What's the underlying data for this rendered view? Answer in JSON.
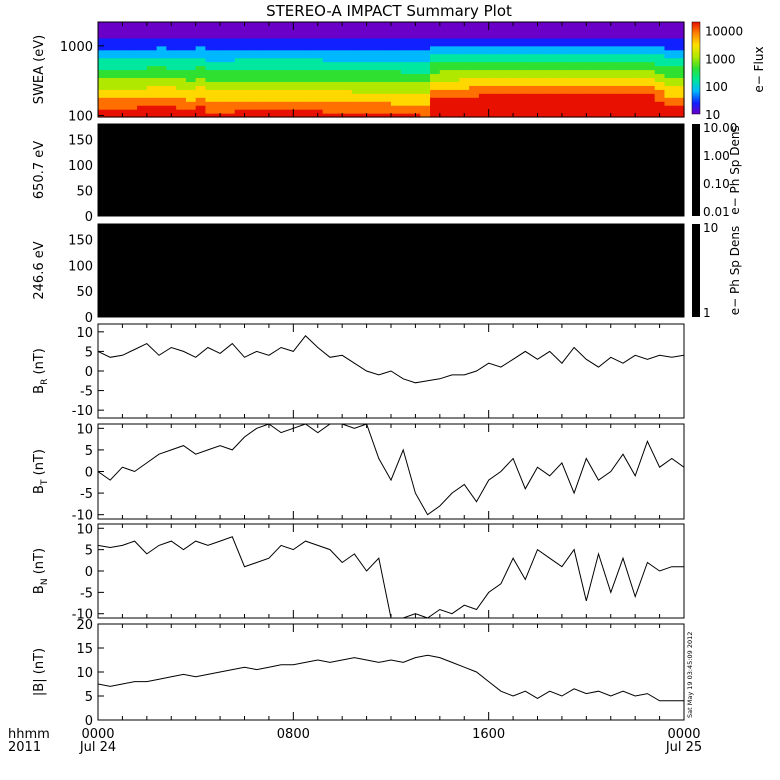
{
  "title": "STEREO-A IMPACT Summary Plot",
  "timestamp": "Sat May 19 03:45:09 2012",
  "x_axis": {
    "corner_top": "hhmm",
    "corner_bottom": "2011",
    "ticks": [
      {
        "hour": 0,
        "top": "0000",
        "bottom": "Jul 24"
      },
      {
        "hour": 8,
        "top": "0800",
        "bottom": ""
      },
      {
        "hour": 16,
        "top": "1600",
        "bottom": ""
      },
      {
        "hour": 24,
        "top": "0000",
        "bottom": "Jul 25"
      }
    ]
  },
  "chart_data": [
    {
      "type": "heatmap",
      "ylabel": "SWEA (eV)",
      "y_scale": "log",
      "ylim": [
        95,
        2200
      ],
      "y_ticks": [
        "100",
        "1000"
      ],
      "colorbar": {
        "label": "e− Flux",
        "scale": "log",
        "range": [
          10,
          20000
        ],
        "ticks": [
          "10",
          "100",
          "1000",
          "10000"
        ]
      },
      "xlim": [
        0,
        24
      ],
      "flux_profile_x": [
        0,
        1.5,
        2.5,
        3.8,
        4.1,
        4.5,
        8.2,
        13.5,
        13.8,
        15.5,
        22.8,
        23.2,
        24
      ],
      "flux_profile_level": [
        0.55,
        0.55,
        0.6,
        0.52,
        0.62,
        0.5,
        0.52,
        0.45,
        0.72,
        0.78,
        0.8,
        0.58,
        0.58
      ]
    },
    {
      "type": "heatmap",
      "ylabel": "650.7 eV",
      "ylim": [
        0,
        180
      ],
      "y_ticks": [
        "0",
        "50",
        "100",
        "150"
      ],
      "colorbar": {
        "label": "e− Ph Sp Dens",
        "scale": "log",
        "range": [
          0.01,
          10
        ],
        "ticks": [
          "10.00",
          "1.00",
          "0.10",
          "0.01"
        ]
      },
      "fill": "#000000"
    },
    {
      "type": "heatmap",
      "ylabel": "246.6 eV",
      "ylim": [
        0,
        180
      ],
      "y_ticks": [
        "0",
        "50",
        "100",
        "150"
      ],
      "colorbar": {
        "label": "e− Ph Sp Dens",
        "scale": "log",
        "range": [
          1,
          10
        ],
        "ticks": [
          "10",
          "1"
        ]
      },
      "fill": "#000000"
    },
    {
      "type": "line",
      "ylabel_main": "B",
      "ylabel_sub": "R",
      "ylabel_unit": " (nT)",
      "ylim": [
        -12,
        12
      ],
      "y_ticks": [
        "-10",
        "-5",
        "0",
        "5",
        "10"
      ],
      "x": [
        0,
        0.5,
        1,
        1.5,
        2,
        2.5,
        3,
        3.5,
        4,
        4.5,
        5,
        5.5,
        6,
        6.5,
        7,
        7.5,
        8,
        8.5,
        9,
        9.5,
        10,
        10.5,
        11,
        11.5,
        12,
        12.5,
        13,
        13.5,
        14,
        14.5,
        15,
        15.5,
        16,
        16.5,
        17,
        17.5,
        18,
        18.5,
        19,
        19.5,
        20,
        20.5,
        21,
        21.5,
        22,
        22.5,
        23,
        23.5,
        24
      ],
      "y": [
        5,
        3.5,
        4,
        5.5,
        7,
        4,
        6,
        5,
        3.5,
        6,
        4.5,
        7,
        3.5,
        5,
        4,
        6,
        5,
        9,
        6,
        3.5,
        4,
        2,
        0,
        -1,
        0,
        -2,
        -3,
        -2.5,
        -2,
        -1,
        -1,
        0,
        2,
        1,
        3,
        5,
        3,
        5,
        2,
        6,
        3,
        1,
        3.5,
        2,
        4,
        3,
        4,
        3.5,
        4
      ]
    },
    {
      "type": "line",
      "ylabel_main": "B",
      "ylabel_sub": "T",
      "ylabel_unit": " (nT)",
      "ylim": [
        -11,
        11
      ],
      "y_ticks": [
        "-10",
        "-5",
        "0",
        "5",
        "10"
      ],
      "x": [
        0,
        0.5,
        1,
        1.5,
        2,
        2.5,
        3,
        3.5,
        4,
        4.5,
        5,
        5.5,
        6,
        6.5,
        7,
        7.5,
        8,
        8.5,
        9,
        9.5,
        10,
        10.5,
        11,
        11.5,
        12,
        12.5,
        13,
        13.5,
        14,
        14.5,
        15,
        15.5,
        16,
        16.5,
        17,
        17.5,
        18,
        18.5,
        19,
        19.5,
        20,
        20.5,
        21,
        21.5,
        22,
        22.5,
        23,
        23.5,
        24
      ],
      "y": [
        0,
        -2,
        1,
        0,
        2,
        4,
        5,
        6,
        4,
        5,
        6,
        5,
        8,
        10,
        11,
        9,
        10,
        11,
        9,
        11,
        11,
        10,
        11,
        3,
        -2,
        5,
        -5,
        -10,
        -8,
        -5,
        -3,
        -7,
        -2,
        0,
        3,
        -4,
        1,
        -1,
        2,
        -5,
        3,
        -2,
        0,
        4,
        -1,
        7,
        1,
        3,
        1
      ]
    },
    {
      "type": "line",
      "ylabel_main": "B",
      "ylabel_sub": "N",
      "ylabel_unit": " (nT)",
      "ylim": [
        -11,
        11
      ],
      "y_ticks": [
        "-10",
        "-5",
        "0",
        "5",
        "10"
      ],
      "x": [
        0,
        0.5,
        1,
        1.5,
        2,
        2.5,
        3,
        3.5,
        4,
        4.5,
        5,
        5.5,
        6,
        6.5,
        7,
        7.5,
        8,
        8.5,
        9,
        9.5,
        10,
        10.5,
        11,
        11.5,
        12,
        12.5,
        13,
        13.5,
        14,
        14.5,
        15,
        15.5,
        16,
        16.5,
        17,
        17.5,
        18,
        18.5,
        19,
        19.5,
        20,
        20.5,
        21,
        21.5,
        22,
        22.5,
        23,
        23.5,
        24
      ],
      "y": [
        6,
        5.5,
        6,
        7,
        4,
        6,
        7,
        5,
        7,
        6,
        7,
        8,
        1,
        2,
        3,
        6,
        5,
        7,
        6,
        5,
        2,
        4,
        0,
        3,
        -11,
        -11,
        -10,
        -11,
        -9,
        -10,
        -8,
        -9,
        -5,
        -3,
        3,
        -2,
        5,
        3,
        1,
        5,
        -7,
        4,
        -5,
        3,
        -6,
        2,
        0,
        1,
        1
      ]
    },
    {
      "type": "line",
      "ylabel_main": "|B|",
      "ylabel_sub": "",
      "ylabel_unit": " (nT)",
      "ylim": [
        0,
        20
      ],
      "y_ticks": [
        "0",
        "5",
        "10",
        "15",
        "20"
      ],
      "x": [
        0,
        0.5,
        1,
        1.5,
        2,
        2.5,
        3,
        3.5,
        4,
        4.5,
        5,
        5.5,
        6,
        6.5,
        7,
        7.5,
        8,
        8.5,
        9,
        9.5,
        10,
        10.5,
        11,
        11.5,
        12,
        12.5,
        13,
        13.5,
        14,
        14.5,
        15,
        15.5,
        16,
        16.5,
        17,
        17.5,
        18,
        18.5,
        19,
        19.5,
        20,
        20.5,
        21,
        21.5,
        22,
        22.5,
        23,
        23.5,
        24
      ],
      "y": [
        7.5,
        7,
        7.5,
        8,
        8,
        8.5,
        9,
        9.5,
        9,
        9.5,
        10,
        10.5,
        11,
        10.5,
        11,
        11.5,
        11.5,
        12,
        12.5,
        12,
        12.5,
        13,
        12.5,
        12,
        12.5,
        12,
        13,
        13.5,
        13,
        12,
        11,
        10,
        8,
        6,
        5,
        6,
        4.5,
        6,
        5,
        6.5,
        5.5,
        6,
        5,
        6,
        5,
        5.5,
        4,
        4,
        4
      ]
    }
  ]
}
